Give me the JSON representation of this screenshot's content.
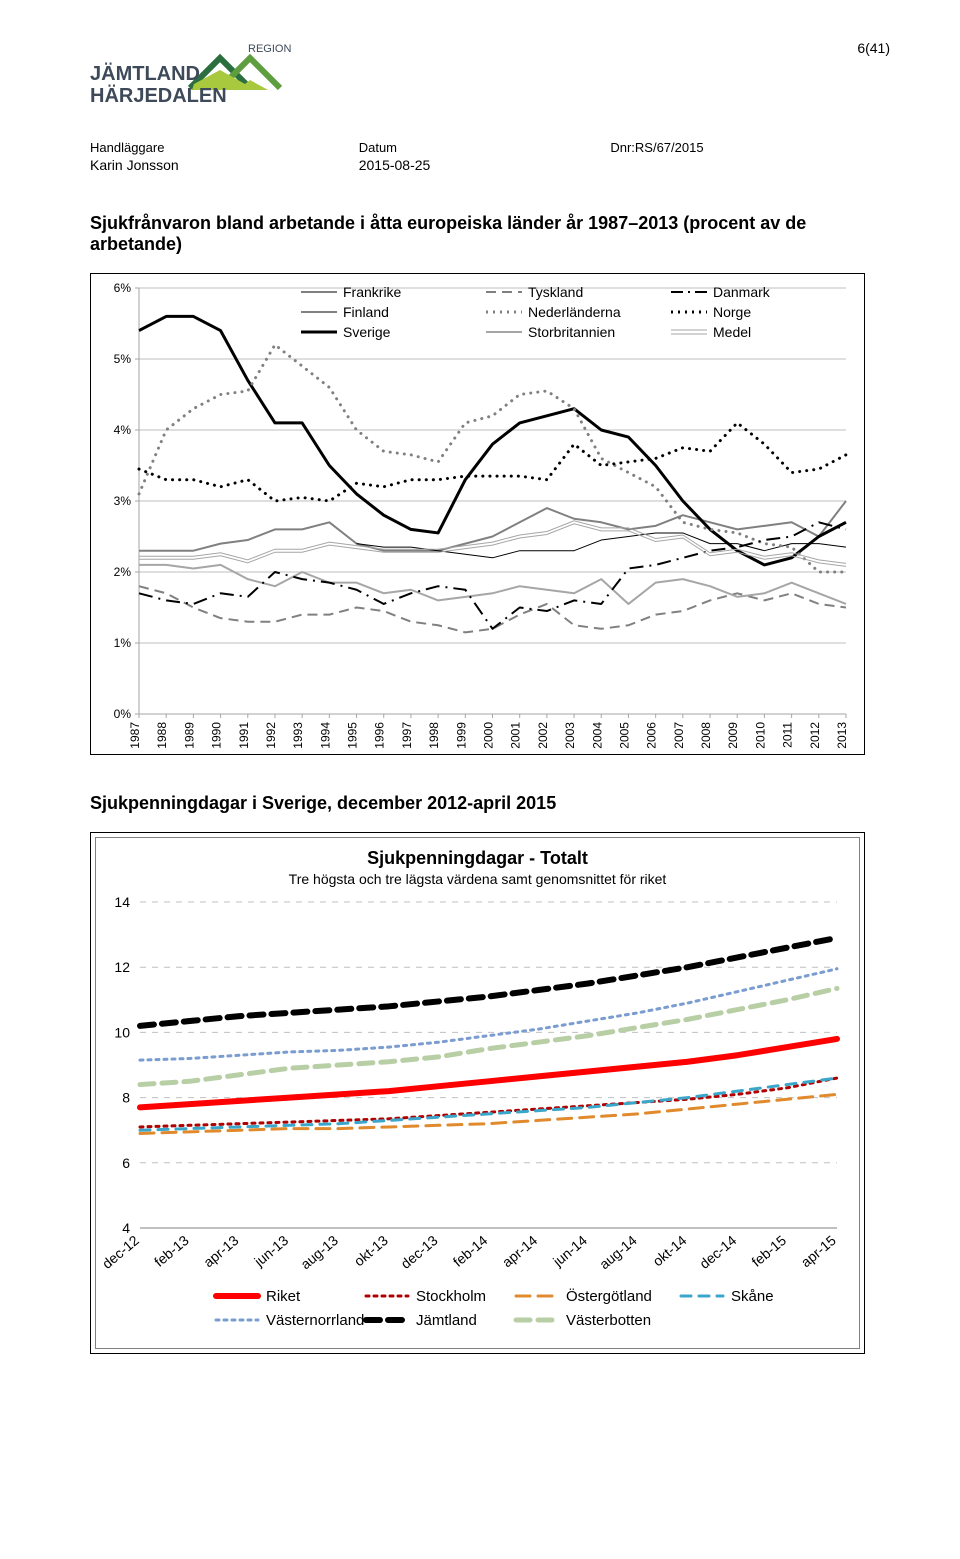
{
  "page_counter": "6(41)",
  "logo": {
    "top_text": "REGION",
    "name_line1": "JÄMTLAND",
    "name_line2": "HÄRJEDALEN",
    "green_light": "#a8c93e",
    "green_mid": "#5f9e3f",
    "green_dark": "#2c6f3e",
    "text_color": "#3e4a59"
  },
  "meta": {
    "hand_label": "Handläggare",
    "hand_value": "Karin Jonsson",
    "datum_label": "Datum",
    "datum_value": "2015-08-25",
    "dnr_label": "Dnr:RS/67/2015"
  },
  "chart1": {
    "type": "line",
    "title": "Sjukfrånvaron bland arbetande i åtta europeiska länder år 1987–2013 (procent av de arbetande)",
    "background_color": "#ffffff",
    "grid_color": "#bfbfbf",
    "axis_color": "#a6a6a6",
    "text_color": "#000000",
    "ylim": [
      0,
      6
    ],
    "ytick_step": 1,
    "ytick_labels": [
      "0%",
      "1%",
      "2%",
      "3%",
      "4%",
      "5%",
      "6%"
    ],
    "xticks": [
      "1987",
      "1988",
      "1989",
      "1990",
      "1991",
      "1992",
      "1993",
      "1994",
      "1995",
      "1996",
      "1997",
      "1998",
      "1999",
      "2000",
      "2001",
      "2002",
      "2003",
      "2004",
      "2005",
      "2006",
      "2007",
      "2008",
      "2009",
      "2010",
      "2011",
      "2012",
      "2013"
    ],
    "legend_cols": [
      {
        "label": "Frankrike",
        "color": "#808080",
        "style": "solid",
        "width": 2,
        "swatch": "solid"
      },
      {
        "label": "Finland",
        "color": "#000000",
        "style": "solid",
        "width": 1,
        "swatch": "thin"
      },
      {
        "label": "Sverige",
        "color": "#000000",
        "style": "solid",
        "width": 3,
        "swatch": "heavy"
      },
      {
        "label": "Tyskland",
        "color": "#808080",
        "style": "dash",
        "width": 2,
        "swatch": "dash"
      },
      {
        "label": "Nederländerna",
        "color": "#808080",
        "style": "dot",
        "width": 3,
        "swatch": "dot"
      },
      {
        "label": "Storbritannien",
        "color": "#a6a6a6",
        "style": "solid",
        "width": 2,
        "swatch": "solid"
      },
      {
        "label": "Danmark",
        "color": "#000000",
        "style": "dashdot",
        "width": 2,
        "swatch": "dashdot"
      },
      {
        "label": "Norge",
        "color": "#000000",
        "style": "dot",
        "width": 3,
        "swatch": "dot"
      },
      {
        "label": "Medel",
        "color": "#a6a6a6",
        "style": "double",
        "width": 1,
        "swatch": "double"
      }
    ],
    "series": {
      "Frankrike": [
        2.3,
        2.3,
        2.3,
        2.4,
        2.45,
        2.6,
        2.6,
        2.7,
        2.4,
        2.3,
        2.3,
        2.3,
        2.4,
        2.5,
        2.7,
        2.9,
        2.75,
        2.7,
        2.6,
        2.65,
        2.8,
        2.7,
        2.6,
        2.65,
        2.7,
        2.5,
        3.0
      ],
      "Finland": [
        null,
        null,
        null,
        null,
        null,
        null,
        null,
        null,
        2.4,
        2.35,
        2.35,
        2.3,
        2.25,
        2.2,
        2.3,
        2.3,
        2.3,
        2.45,
        2.5,
        2.55,
        2.55,
        2.4,
        2.4,
        2.3,
        2.4,
        2.4,
        2.35
      ],
      "Sverige": [
        5.4,
        5.6,
        5.6,
        5.4,
        4.7,
        4.1,
        4.1,
        3.5,
        3.1,
        2.8,
        2.6,
        2.55,
        3.3,
        3.8,
        4.1,
        4.2,
        4.3,
        4.0,
        3.9,
        3.5,
        3.0,
        2.6,
        2.3,
        2.1,
        2.2,
        2.5,
        2.7
      ],
      "Tyskland": [
        1.8,
        1.7,
        1.5,
        1.35,
        1.3,
        1.3,
        1.4,
        1.4,
        1.5,
        1.45,
        1.3,
        1.25,
        1.15,
        1.2,
        1.4,
        1.55,
        1.25,
        1.2,
        1.25,
        1.4,
        1.45,
        1.6,
        1.7,
        1.6,
        1.7,
        1.55,
        1.5
      ],
      "Nederländerna": [
        3.1,
        4.0,
        4.3,
        4.5,
        4.55,
        5.2,
        4.9,
        4.6,
        4.0,
        3.7,
        3.65,
        3.55,
        4.1,
        4.2,
        4.5,
        4.55,
        4.3,
        3.6,
        3.4,
        3.2,
        2.7,
        2.6,
        2.55,
        2.4,
        2.35,
        2.0,
        2.0
      ],
      "Storbritannien": [
        2.1,
        2.1,
        2.05,
        2.1,
        1.9,
        1.8,
        2.0,
        1.85,
        1.85,
        1.7,
        1.75,
        1.6,
        1.65,
        1.7,
        1.8,
        1.75,
        1.7,
        1.9,
        1.55,
        1.85,
        1.9,
        1.8,
        1.65,
        1.7,
        1.85,
        1.7,
        1.55
      ],
      "Danmark": [
        1.7,
        1.6,
        1.55,
        1.7,
        1.65,
        2.0,
        1.9,
        1.85,
        1.75,
        1.55,
        1.7,
        1.8,
        1.75,
        1.2,
        1.5,
        1.45,
        1.6,
        1.55,
        2.05,
        2.1,
        2.2,
        2.3,
        2.35,
        2.45,
        2.5,
        2.7,
        2.6
      ],
      "Norge": [
        3.45,
        3.3,
        3.3,
        3.2,
        3.3,
        3.0,
        3.05,
        3.0,
        3.25,
        3.2,
        3.3,
        3.3,
        3.35,
        3.35,
        3.35,
        3.3,
        3.8,
        3.5,
        3.55,
        3.6,
        3.75,
        3.7,
        4.1,
        3.8,
        3.4,
        3.45,
        3.65
      ],
      "Medel": [
        2.2,
        2.2,
        2.2,
        2.25,
        2.15,
        2.3,
        2.3,
        2.4,
        2.35,
        2.3,
        2.3,
        2.3,
        2.35,
        2.4,
        2.5,
        2.55,
        2.7,
        2.6,
        2.6,
        2.45,
        2.5,
        2.25,
        2.3,
        2.2,
        2.25,
        2.15,
        2.1
      ]
    }
  },
  "chart2": {
    "type": "line",
    "section_title": "Sjukpenningdagar i Sverige, december 2012-april 2015",
    "title": "Sjukpenningdagar - Totalt",
    "subtitle": "Tre högsta och tre lägsta värdena samt genomsnittet för riket",
    "background_color": "#ffffff",
    "grid_color": "#c0c0c0",
    "text_color": "#000000",
    "ylim": [
      4,
      14
    ],
    "ytick_step": 2,
    "ytick_labels": [
      "4",
      "6",
      "8",
      "10",
      "12",
      "14"
    ],
    "xticks": [
      "dec-12",
      "feb-13",
      "apr-13",
      "jun-13",
      "aug-13",
      "okt-13",
      "dec-13",
      "feb-14",
      "apr-14",
      "jun-14",
      "aug-14",
      "okt-14",
      "dec-14",
      "feb-15",
      "apr-15"
    ],
    "colors": {
      "Riket": "#ff0000",
      "Stockholm": "#b00000",
      "Östergötland": "#e08a2d",
      "Skåne": "#3aa6c9",
      "Västernorrland": "#7a9cd1",
      "Jämtland": "#000000",
      "Västerbotten": "#b8cfa6"
    },
    "styles": {
      "Riket": {
        "dash": "",
        "width": 6
      },
      "Stockholm": {
        "dash": "3,5",
        "width": 3
      },
      "Östergötland": {
        "dash": "14,8",
        "width": 3
      },
      "Skåne": {
        "dash": "10,8",
        "width": 3
      },
      "Västernorrland": {
        "dash": "3,5",
        "width": 3
      },
      "Jämtland": {
        "dash": "14,8",
        "width": 6
      },
      "Västerbotten": {
        "dash": "14,8",
        "width": 5
      }
    },
    "series": {
      "Riket": [
        7.7,
        7.8,
        7.9,
        8.0,
        8.1,
        8.2,
        8.35,
        8.5,
        8.65,
        8.8,
        8.95,
        9.1,
        9.3,
        9.55,
        9.8
      ],
      "Stockholm": [
        7.1,
        7.15,
        7.2,
        7.25,
        7.3,
        7.35,
        7.45,
        7.55,
        7.65,
        7.75,
        7.85,
        7.95,
        8.1,
        8.3,
        8.6
      ],
      "Östergötland": [
        6.9,
        6.95,
        7.0,
        7.05,
        7.05,
        7.1,
        7.15,
        7.2,
        7.3,
        7.4,
        7.5,
        7.65,
        7.8,
        7.95,
        8.1
      ],
      "Skåne": [
        7.0,
        7.05,
        7.1,
        7.15,
        7.2,
        7.3,
        7.4,
        7.5,
        7.6,
        7.7,
        7.85,
        8.0,
        8.2,
        8.4,
        8.6
      ],
      "Västernorrland": [
        9.15,
        9.2,
        9.3,
        9.4,
        9.45,
        9.55,
        9.7,
        9.9,
        10.1,
        10.35,
        10.6,
        10.9,
        11.25,
        11.6,
        11.95
      ],
      "Jämtland": [
        10.2,
        10.35,
        10.5,
        10.6,
        10.7,
        10.8,
        10.95,
        11.1,
        11.3,
        11.5,
        11.75,
        12.0,
        12.3,
        12.6,
        12.9
      ],
      "Västerbotten": [
        8.4,
        8.5,
        8.7,
        8.9,
        9.0,
        9.1,
        9.25,
        9.5,
        9.7,
        9.9,
        10.15,
        10.4,
        10.7,
        11.0,
        11.35
      ]
    },
    "legend_row1": [
      {
        "key": "Riket",
        "label": "Riket"
      },
      {
        "key": "Stockholm",
        "label": "Stockholm"
      },
      {
        "key": "Östergötland",
        "label": "Östergötland"
      },
      {
        "key": "Skåne",
        "label": "Skåne"
      }
    ],
    "legend_row2": [
      {
        "key": "Västernorrland",
        "label": "Västernorrland"
      },
      {
        "key": "Jämtland",
        "label": "Jämtland"
      },
      {
        "key": "Västerbotten",
        "label": "Västerbotten"
      }
    ]
  }
}
